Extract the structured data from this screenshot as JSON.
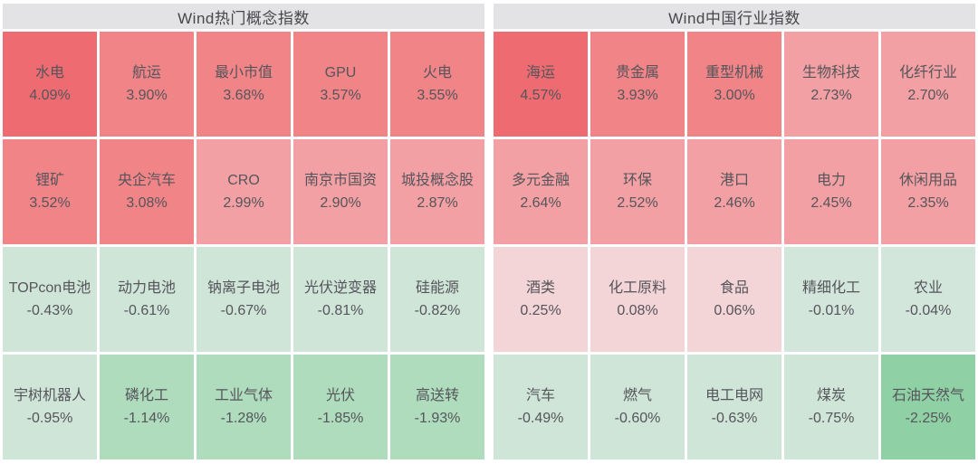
{
  "page": {
    "background": "#ffffff",
    "header_bg": "#e3e3e5",
    "header_text_color": "#47474b",
    "cell_text_color": "#55555b"
  },
  "sections": [
    {
      "title": "Wind热门概念指数",
      "rows": [
        [
          {
            "name": "水电",
            "value": "4.09%",
            "color": "#ee6c71"
          },
          {
            "name": "航运",
            "value": "3.90%",
            "color": "#f08487"
          },
          {
            "name": "最小市值",
            "value": "3.68%",
            "color": "#f08487"
          },
          {
            "name": "GPU",
            "value": "3.57%",
            "color": "#f08487"
          },
          {
            "name": "火电",
            "value": "3.55%",
            "color": "#f08487"
          }
        ],
        [
          {
            "name": "锂矿",
            "value": "3.52%",
            "color": "#f08487"
          },
          {
            "name": "央企汽车",
            "value": "3.08%",
            "color": "#f08487"
          },
          {
            "name": "CRO",
            "value": "2.99%",
            "color": "#f2a0a3"
          },
          {
            "name": "南京市国资",
            "value": "2.90%",
            "color": "#f2a0a3"
          },
          {
            "name": "城投概念股",
            "value": "2.87%",
            "color": "#f2a0a3"
          }
        ],
        [
          {
            "name": "TOPcon电池",
            "value": "-0.43%",
            "color": "#cfe5d8"
          },
          {
            "name": "动力电池",
            "value": "-0.61%",
            "color": "#cfe5d8"
          },
          {
            "name": "钠离子电池",
            "value": "-0.67%",
            "color": "#cfe5d8"
          },
          {
            "name": "光伏逆变器",
            "value": "-0.81%",
            "color": "#cfe5d8"
          },
          {
            "name": "硅能源",
            "value": "-0.82%",
            "color": "#cfe5d8"
          }
        ],
        [
          {
            "name": "宇树机器人",
            "value": "-0.95%",
            "color": "#cfe5d8"
          },
          {
            "name": "磷化工",
            "value": "-1.14%",
            "color": "#aedcbd"
          },
          {
            "name": "工业气体",
            "value": "-1.28%",
            "color": "#aedcbd"
          },
          {
            "name": "光伏",
            "value": "-1.85%",
            "color": "#aedcbd"
          },
          {
            "name": "高送转",
            "value": "-1.93%",
            "color": "#aedcbd"
          }
        ]
      ]
    },
    {
      "title": "Wind中国行业指数",
      "rows": [
        [
          {
            "name": "海运",
            "value": "4.57%",
            "color": "#ee6c71"
          },
          {
            "name": "贵金属",
            "value": "3.93%",
            "color": "#f08487"
          },
          {
            "name": "重型机械",
            "value": "3.00%",
            "color": "#f08487"
          },
          {
            "name": "生物科技",
            "value": "2.73%",
            "color": "#f2a0a3"
          },
          {
            "name": "化纤行业",
            "value": "2.70%",
            "color": "#f2a0a3"
          }
        ],
        [
          {
            "name": "多元金融",
            "value": "2.64%",
            "color": "#f2a0a3"
          },
          {
            "name": "环保",
            "value": "2.52%",
            "color": "#f2a0a3"
          },
          {
            "name": "港口",
            "value": "2.46%",
            "color": "#f2a0a3"
          },
          {
            "name": "电力",
            "value": "2.45%",
            "color": "#f2a0a3"
          },
          {
            "name": "休闲用品",
            "value": "2.35%",
            "color": "#f2a0a3"
          }
        ],
        [
          {
            "name": "酒类",
            "value": "0.25%",
            "color": "#f3d4d7"
          },
          {
            "name": "化工原料",
            "value": "0.08%",
            "color": "#f3d4d7"
          },
          {
            "name": "食品",
            "value": "0.06%",
            "color": "#f3d4d7"
          },
          {
            "name": "精细化工",
            "value": "-0.01%",
            "color": "#d3e6db"
          },
          {
            "name": "农业",
            "value": "-0.04%",
            "color": "#d3e6db"
          }
        ],
        [
          {
            "name": "汽车",
            "value": "-0.49%",
            "color": "#cfe5d8"
          },
          {
            "name": "燃气",
            "value": "-0.60%",
            "color": "#cfe5d8"
          },
          {
            "name": "电工电网",
            "value": "-0.63%",
            "color": "#cfe5d8"
          },
          {
            "name": "煤炭",
            "value": "-0.75%",
            "color": "#cfe5d8"
          },
          {
            "name": "石油天然气",
            "value": "-2.25%",
            "color": "#90d0a5"
          }
        ]
      ]
    }
  ],
  "chart_data": [
    {
      "type": "heatmap",
      "title": "Wind热门概念指数",
      "layout": "5 columns x 4 rows, sorted descending by daily change",
      "color_scale": {
        "positive": "#ee6c71 to #f3d4d7",
        "negative": "#d3e6db to #90d0a5"
      },
      "cells": [
        {
          "name": "水电",
          "change_pct": 4.09
        },
        {
          "name": "航运",
          "change_pct": 3.9
        },
        {
          "name": "最小市值",
          "change_pct": 3.68
        },
        {
          "name": "GPU",
          "change_pct": 3.57
        },
        {
          "name": "火电",
          "change_pct": 3.55
        },
        {
          "name": "锂矿",
          "change_pct": 3.52
        },
        {
          "name": "央企汽车",
          "change_pct": 3.08
        },
        {
          "name": "CRO",
          "change_pct": 2.99
        },
        {
          "name": "南京市国资",
          "change_pct": 2.9
        },
        {
          "name": "城投概念股",
          "change_pct": 2.87
        },
        {
          "name": "TOPcon电池",
          "change_pct": -0.43
        },
        {
          "name": "动力电池",
          "change_pct": -0.61
        },
        {
          "name": "钠离子电池",
          "change_pct": -0.67
        },
        {
          "name": "光伏逆变器",
          "change_pct": -0.81
        },
        {
          "name": "硅能源",
          "change_pct": -0.82
        },
        {
          "name": "宇树机器人",
          "change_pct": -0.95
        },
        {
          "name": "磷化工",
          "change_pct": -1.14
        },
        {
          "name": "工业气体",
          "change_pct": -1.28
        },
        {
          "name": "光伏",
          "change_pct": -1.85
        },
        {
          "name": "高送转",
          "change_pct": -1.93
        }
      ]
    },
    {
      "type": "heatmap",
      "title": "Wind中国行业指数",
      "layout": "5 columns x 4 rows, sorted descending by daily change",
      "color_scale": {
        "positive": "#ee6c71 to #f3d4d7",
        "negative": "#d3e6db to #90d0a5"
      },
      "cells": [
        {
          "name": "海运",
          "change_pct": 4.57
        },
        {
          "name": "贵金属",
          "change_pct": 3.93
        },
        {
          "name": "重型机械",
          "change_pct": 3.0
        },
        {
          "name": "生物科技",
          "change_pct": 2.73
        },
        {
          "name": "化纤行业",
          "change_pct": 2.7
        },
        {
          "name": "多元金融",
          "change_pct": 2.64
        },
        {
          "name": "环保",
          "change_pct": 2.52
        },
        {
          "name": "港口",
          "change_pct": 2.46
        },
        {
          "name": "电力",
          "change_pct": 2.45
        },
        {
          "name": "休闲用品",
          "change_pct": 2.35
        },
        {
          "name": "酒类",
          "change_pct": 0.25
        },
        {
          "name": "化工原料",
          "change_pct": 0.08
        },
        {
          "name": "食品",
          "change_pct": 0.06
        },
        {
          "name": "精细化工",
          "change_pct": -0.01
        },
        {
          "name": "农业",
          "change_pct": -0.04
        },
        {
          "name": "汽车",
          "change_pct": -0.49
        },
        {
          "name": "燃气",
          "change_pct": -0.6
        },
        {
          "name": "电工电网",
          "change_pct": -0.63
        },
        {
          "name": "煤炭",
          "change_pct": -0.75
        },
        {
          "name": "石油天然气",
          "change_pct": -2.25
        }
      ]
    }
  ]
}
